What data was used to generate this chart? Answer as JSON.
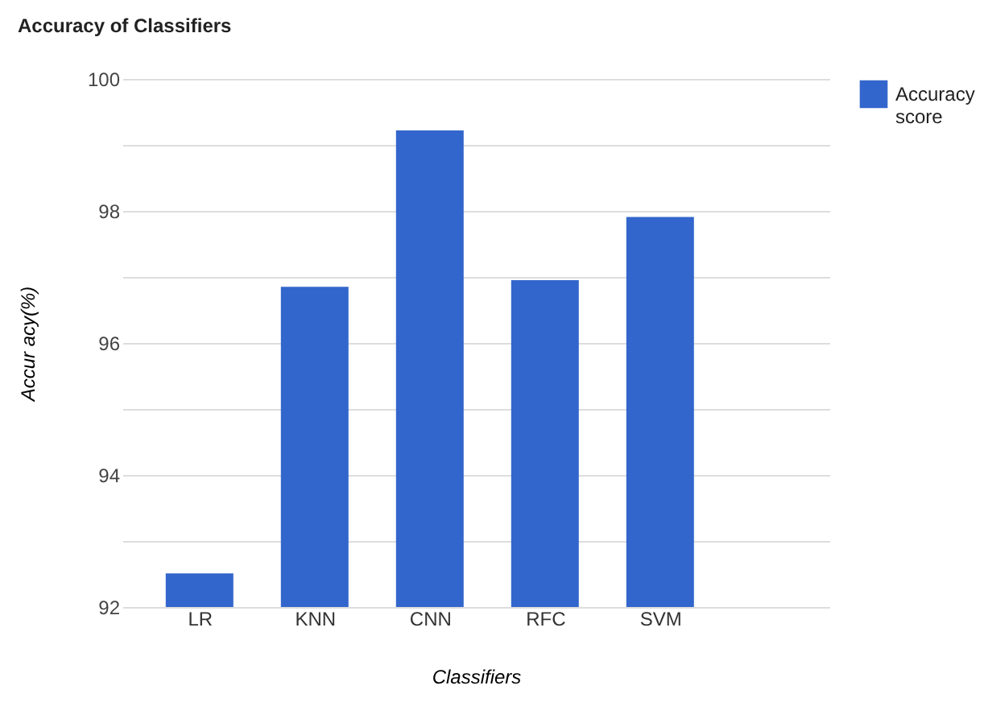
{
  "chart_data": {
    "type": "bar",
    "title": "Accuracy of Classifiers",
    "xlabel": "Classifiers",
    "ylabel": "Accur acy(%)",
    "categories": [
      "LR",
      "KNN",
      "CNN",
      "RFC",
      "SVM"
    ],
    "series": [
      {
        "name": "Accuracy score",
        "color": "#3366cc",
        "values": [
          92.51,
          96.85,
          99.22,
          96.95,
          97.91
        ]
      }
    ],
    "ylim": [
      92,
      100
    ],
    "yticks": [
      92,
      {
        "value": 93,
        "label": null
      },
      94,
      {
        "value": 95,
        "label": null
      },
      96,
      {
        "value": 97,
        "label": null
      },
      98,
      {
        "value": 99,
        "label": null
      },
      100
    ],
    "grid": "y",
    "legend": "top right"
  }
}
